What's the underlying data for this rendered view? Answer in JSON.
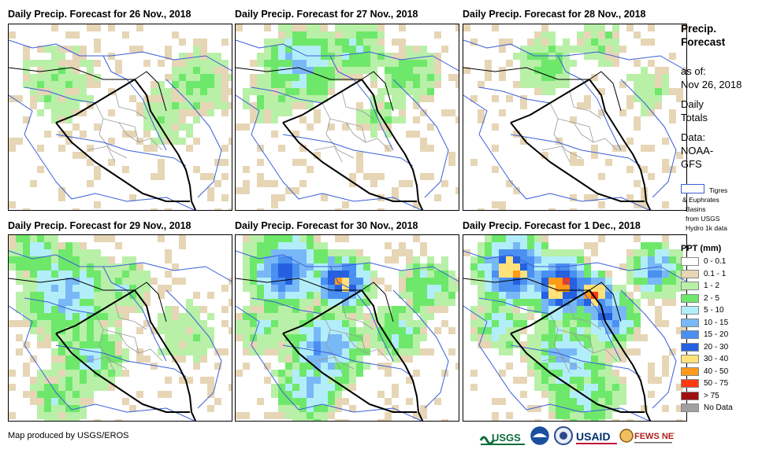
{
  "panels": [
    {
      "title": "Daily Precip. Forecast for 26 Nov., 2018",
      "key": "nov26"
    },
    {
      "title": "Daily Precip. Forecast for 27 Nov., 2018",
      "key": "nov27"
    },
    {
      "title": "Daily Precip. Forecast for 28 Nov., 2018",
      "key": "nov28"
    },
    {
      "title": "Daily Precip. Forecast for 29 Nov., 2018",
      "key": "nov29"
    },
    {
      "title": "Daily Precip. Forecast for 30 Nov., 2018",
      "key": "nov30"
    },
    {
      "title": "Daily Precip. Forecast for 1 Dec., 2018",
      "key": "dec1"
    }
  ],
  "sidebar": {
    "title_line1": "Precip.",
    "title_line2": "Forecast",
    "asof_line1": "as of:",
    "asof_line2": "Nov 26, 2018",
    "daily_line1": "Daily",
    "daily_line2": "Totals",
    "data_line1": "Data:",
    "data_line2": "NOAA-",
    "data_line3": "GFS",
    "basin_line1": "Tigres",
    "basin_line2": "& Euphrates",
    "basin_line3": "Basins",
    "basin_line4": "from USGS",
    "basin_line5": "Hydro 1k data"
  },
  "legend": {
    "title": "PPT (mm)",
    "items": [
      {
        "label": "0 - 0.1",
        "color": "#ffffff"
      },
      {
        "label": "0.1 - 1",
        "color": "#e6d6b6"
      },
      {
        "label": "1 - 2",
        "color": "#b8f0a8"
      },
      {
        "label": "2 - 5",
        "color": "#6ee86a"
      },
      {
        "label": "5 - 10",
        "color": "#b2eefa"
      },
      {
        "label": "10 - 15",
        "color": "#78b8f6"
      },
      {
        "label": "15 - 20",
        "color": "#4a90f0"
      },
      {
        "label": "20 - 30",
        "color": "#2460e0"
      },
      {
        "label": "30 - 40",
        "color": "#ffe27a"
      },
      {
        "label": "40 - 50",
        "color": "#ff9a1a"
      },
      {
        "label": "50 - 75",
        "color": "#ff3a10"
      },
      {
        "label": "> 75",
        "color": "#a01010"
      },
      {
        "label": "No Data",
        "color": "#a0a0a0"
      }
    ]
  },
  "footer": {
    "credit": "Map produced by USGS/EROS"
  },
  "logos": {
    "usgs": "USGS",
    "usaid": "USAID",
    "fewsnet": "FEWS NET"
  },
  "colors": {
    "basin": "#3b5fd6",
    "border": "#000000",
    "province": "#999999"
  }
}
